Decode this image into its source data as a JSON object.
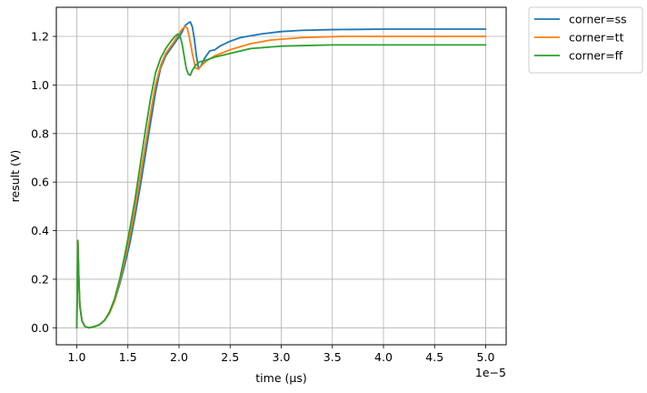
{
  "chart_data": {
    "type": "line",
    "xlabel": "time (µs)",
    "ylabel": "result (V)",
    "x_offset_text": "1e−5",
    "xlim": [
      0.8,
      5.2
    ],
    "ylim": [
      -0.07,
      1.32
    ],
    "xticks": [
      1.0,
      1.5,
      2.0,
      2.5,
      3.0,
      3.5,
      4.0,
      4.5,
      5.0
    ],
    "xtick_labels": [
      "1.0",
      "1.5",
      "2.0",
      "2.5",
      "3.0",
      "3.5",
      "4.0",
      "4.5",
      "5.0"
    ],
    "yticks": [
      0.0,
      0.2,
      0.4,
      0.6,
      0.8,
      1.0,
      1.2
    ],
    "ytick_labels": [
      "0.0",
      "0.2",
      "0.4",
      "0.6",
      "0.8",
      "1.0",
      "1.2"
    ],
    "grid": true,
    "legend_position": "outside-top-right",
    "series": [
      {
        "name": "corner=ss",
        "color": "#1f77b4",
        "x": [
          1.0,
          1.01,
          1.02,
          1.03,
          1.05,
          1.08,
          1.12,
          1.17,
          1.22,
          1.27,
          1.32,
          1.37,
          1.42,
          1.47,
          1.52,
          1.57,
          1.62,
          1.67,
          1.72,
          1.77,
          1.82,
          1.87,
          1.92,
          1.97,
          2.02,
          2.06,
          2.09,
          2.11,
          2.13,
          2.15,
          2.17,
          2.19,
          2.21,
          2.25,
          2.3,
          2.35,
          2.4,
          2.5,
          2.6,
          2.8,
          3.0,
          3.2,
          3.5,
          4.0,
          4.5,
          5.0
        ],
        "y": [
          0.0,
          0.36,
          0.2,
          0.09,
          0.03,
          0.005,
          0.0,
          0.005,
          0.012,
          0.03,
          0.06,
          0.11,
          0.18,
          0.26,
          0.35,
          0.46,
          0.58,
          0.71,
          0.84,
          0.97,
          1.07,
          1.12,
          1.15,
          1.18,
          1.21,
          1.245,
          1.255,
          1.26,
          1.24,
          1.19,
          1.12,
          1.07,
          1.075,
          1.11,
          1.14,
          1.145,
          1.16,
          1.18,
          1.195,
          1.21,
          1.22,
          1.225,
          1.228,
          1.23,
          1.23,
          1.23
        ]
      },
      {
        "name": "corner=tt",
        "color": "#ff7f0e",
        "x": [
          1.0,
          1.01,
          1.02,
          1.03,
          1.05,
          1.08,
          1.12,
          1.17,
          1.22,
          1.27,
          1.32,
          1.37,
          1.42,
          1.47,
          1.52,
          1.57,
          1.62,
          1.67,
          1.72,
          1.77,
          1.82,
          1.87,
          1.92,
          1.97,
          2.0,
          2.03,
          2.06,
          2.08,
          2.1,
          2.13,
          2.16,
          2.19,
          2.22,
          2.27,
          2.35,
          2.5,
          2.7,
          2.9,
          3.2,
          3.6,
          4.0,
          4.5,
          5.0
        ],
        "y": [
          0.0,
          0.36,
          0.2,
          0.09,
          0.03,
          0.005,
          0.0,
          0.005,
          0.012,
          0.03,
          0.06,
          0.11,
          0.19,
          0.28,
          0.38,
          0.49,
          0.62,
          0.75,
          0.88,
          1.0,
          1.08,
          1.13,
          1.16,
          1.19,
          1.21,
          1.23,
          1.24,
          1.235,
          1.2,
          1.13,
          1.07,
          1.065,
          1.08,
          1.1,
          1.12,
          1.145,
          1.17,
          1.185,
          1.195,
          1.2,
          1.2,
          1.2,
          1.2
        ]
      },
      {
        "name": "corner=ff",
        "color": "#2ca02c",
        "x": [
          1.0,
          1.01,
          1.02,
          1.03,
          1.05,
          1.08,
          1.12,
          1.17,
          1.22,
          1.27,
          1.32,
          1.37,
          1.42,
          1.47,
          1.52,
          1.57,
          1.62,
          1.67,
          1.72,
          1.77,
          1.82,
          1.87,
          1.92,
          1.96,
          1.99,
          2.01,
          2.03,
          2.05,
          2.07,
          2.09,
          2.11,
          2.13,
          2.16,
          2.2,
          2.25,
          2.35,
          2.5,
          2.7,
          3.0,
          3.5,
          4.0,
          4.5,
          5.0
        ],
        "y": [
          0.0,
          0.36,
          0.2,
          0.09,
          0.03,
          0.005,
          0.0,
          0.005,
          0.012,
          0.03,
          0.065,
          0.12,
          0.2,
          0.3,
          0.41,
          0.53,
          0.67,
          0.81,
          0.94,
          1.05,
          1.11,
          1.15,
          1.18,
          1.2,
          1.21,
          1.2,
          1.17,
          1.12,
          1.07,
          1.045,
          1.04,
          1.06,
          1.08,
          1.095,
          1.1,
          1.115,
          1.13,
          1.15,
          1.16,
          1.165,
          1.165,
          1.165,
          1.165
        ]
      }
    ]
  }
}
